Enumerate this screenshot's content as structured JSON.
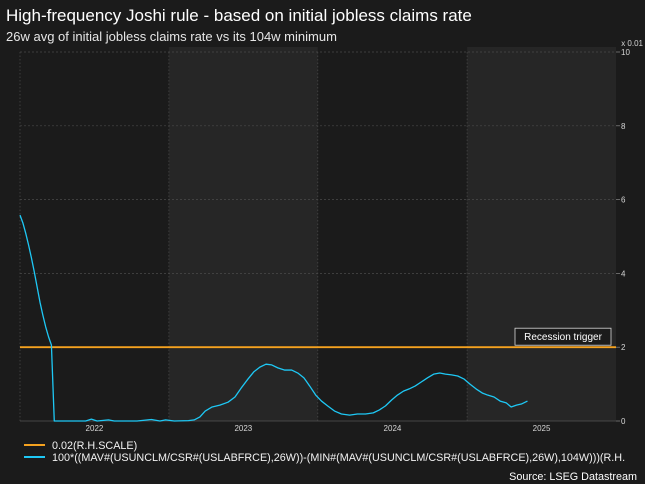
{
  "chart_data": {
    "type": "line",
    "title": "High-frequency Joshi rule - based on initial jobless claims rate",
    "subtitle": "26w avg of initial jobless claims rate vs its 104w minimum",
    "xlabel": "",
    "ylabel": "",
    "y_unit_label": "x 0.01",
    "y_axis_side": "right",
    "ylim": [
      0,
      10
    ],
    "y_ticks": [
      0,
      2,
      4,
      6,
      8,
      10
    ],
    "xlim": [
      "2022-01-01",
      "2026-01-01"
    ],
    "x_tick_labels": [
      "2022",
      "2023",
      "2024",
      "2025"
    ],
    "shaded_years": [
      2023,
      2025
    ],
    "grid": true,
    "legend_position": "bottom-left",
    "annotation": "Recession trigger",
    "source": "Source: LSEG Datastream",
    "series": [
      {
        "name": "0.02(R.H.SCALE)",
        "color": "#f5a21f",
        "x": [
          "2022-01-01",
          "2026-01-01"
        ],
        "y": [
          2,
          2
        ]
      },
      {
        "name": "100*((MAV#(USUNCLM/CSR#(USLABFRCE),26W))-(MIN#(MAV#(USUNCLM/CSR#(USLABFRCE),26W),104W)))(R.H.",
        "color": "#1ec8f5",
        "x": [
          "2022-01-01",
          "2022-01-08",
          "2022-01-15",
          "2022-01-22",
          "2022-01-29",
          "2022-02-05",
          "2022-02-12",
          "2022-02-19",
          "2022-02-26",
          "2022-03-05",
          "2022-03-12",
          "2022-03-19",
          "2022-03-26",
          "2022-04-30",
          "2022-06-11",
          "2022-06-25",
          "2022-07-09",
          "2022-08-06",
          "2022-08-20",
          "2022-10-15",
          "2022-11-19",
          "2022-12-10",
          "2022-12-24",
          "2023-01-14",
          "2023-02-18",
          "2023-03-04",
          "2023-03-18",
          "2023-03-31",
          "2023-04-17",
          "2023-05-06",
          "2023-05-26",
          "2023-06-12",
          "2023-06-29",
          "2023-07-14",
          "2023-07-28",
          "2023-08-12",
          "2023-08-27",
          "2023-09-10",
          "2023-09-25",
          "2023-10-12",
          "2023-10-29",
          "2023-11-13",
          "2023-11-28",
          "2023-12-12",
          "2023-12-27",
          "2024-01-10",
          "2024-01-25",
          "2024-02-11",
          "2024-02-28",
          "2024-03-19",
          "2024-04-07",
          "2024-04-27",
          "2024-05-16",
          "2024-05-31",
          "2024-06-15",
          "2024-06-30",
          "2024-07-14",
          "2024-07-29",
          "2024-08-12",
          "2024-08-27",
          "2024-09-11",
          "2024-09-26",
          "2024-10-11",
          "2024-10-26",
          "2024-11-09",
          "2024-11-24",
          "2024-12-09",
          "2024-12-24",
          "2025-01-08",
          "2025-01-23",
          "2025-02-07",
          "2025-02-21",
          "2025-03-08",
          "2025-03-23",
          "2025-04-07",
          "2025-04-19",
          "2025-05-02",
          "2025-05-14",
          "2025-05-29"
        ],
        "y": [
          5.58,
          5.37,
          5.09,
          4.77,
          4.42,
          4.04,
          3.63,
          3.22,
          2.87,
          2.55,
          2.28,
          2.06,
          0.0,
          0.0,
          0.0,
          0.05,
          0.0,
          0.03,
          0.0,
          0.0,
          0.04,
          0.0,
          0.03,
          0.0,
          0.01,
          0.03,
          0.11,
          0.27,
          0.38,
          0.43,
          0.51,
          0.65,
          0.92,
          1.14,
          1.33,
          1.46,
          1.54,
          1.52,
          1.44,
          1.38,
          1.38,
          1.3,
          1.17,
          0.95,
          0.7,
          0.54,
          0.41,
          0.27,
          0.19,
          0.16,
          0.19,
          0.19,
          0.22,
          0.3,
          0.41,
          0.57,
          0.7,
          0.81,
          0.87,
          0.95,
          1.06,
          1.17,
          1.27,
          1.3,
          1.27,
          1.25,
          1.22,
          1.14,
          1.0,
          0.87,
          0.76,
          0.7,
          0.65,
          0.54,
          0.49,
          0.38,
          0.43,
          0.46,
          0.54
        ]
      }
    ]
  }
}
